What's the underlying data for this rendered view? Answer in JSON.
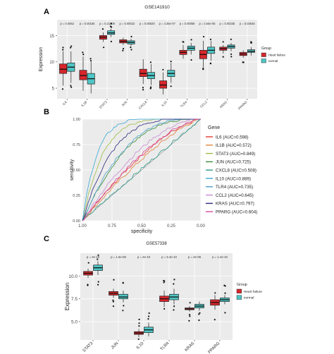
{
  "chart_data": [
    {
      "panel": "A",
      "type": "box",
      "title": "GSE141910",
      "ylabel": "Expression",
      "ylim": [
        3,
        18
      ],
      "yticks": [
        5,
        10,
        15
      ],
      "categories": [
        "IL6",
        "IL1B",
        "STAT3",
        "JUN",
        "CXCL8",
        "IL10",
        "TLR4",
        "CCL2",
        "KRAS",
        "PPARG"
      ],
      "pvalues": [
        "p = 0.0062",
        "p = 0.00155",
        "p = 0.21209",
        "p = 0.00022",
        "p = 0.00620",
        "p = 4.36e-07",
        "p = 0.00058",
        "p = 4.56e-05",
        "p = 0.00335",
        "p = 0.03546"
      ],
      "legend": {
        "title": "Group",
        "entries": [
          "Heart failure",
          "normal"
        ],
        "position": "right"
      },
      "series": [
        {
          "name": "Heart failure",
          "color": "#d7262b",
          "boxes": [
            {
              "q1": 7.8,
              "median": 8.6,
              "q3": 9.6,
              "wlo": 5.5,
              "whi": 12
            },
            {
              "q1": 6.6,
              "median": 7.4,
              "q3": 8.4,
              "wlo": 4.5,
              "whi": 11
            },
            {
              "q1": 14.3,
              "median": 14.7,
              "q3": 15.0,
              "wlo": 13.8,
              "whi": 15.6
            },
            {
              "q1": 13.6,
              "median": 13.9,
              "q3": 14.2,
              "wlo": 13.2,
              "whi": 14.6
            },
            {
              "q1": 7.2,
              "median": 7.8,
              "q3": 8.6,
              "wlo": 5.8,
              "whi": 10.5
            },
            {
              "q1": 5.0,
              "median": 5.6,
              "q3": 6.4,
              "wlo": 3.8,
              "whi": 8.0
            },
            {
              "q1": 11.4,
              "median": 11.8,
              "q3": 12.2,
              "wlo": 10.6,
              "whi": 13.2
            },
            {
              "q1": 10.6,
              "median": 11.4,
              "q3": 12.2,
              "wlo": 9.0,
              "whi": 14.0
            },
            {
              "q1": 12.2,
              "median": 12.5,
              "q3": 12.8,
              "wlo": 11.6,
              "whi": 13.2
            },
            {
              "q1": 11.2,
              "median": 11.5,
              "q3": 11.8,
              "wlo": 10.8,
              "whi": 12.2
            }
          ]
        },
        {
          "name": "normal",
          "color": "#4fc6c6",
          "boxes": [
            {
              "q1": 8.2,
              "median": 9.0,
              "q3": 9.8,
              "wlo": 6.0,
              "whi": 12.0
            },
            {
              "q1": 5.8,
              "median": 6.8,
              "q3": 7.8,
              "wlo": 4.0,
              "whi": 10.0
            },
            {
              "q1": 15.2,
              "median": 15.5,
              "q3": 15.9,
              "wlo": 14.7,
              "whi": 16.3
            },
            {
              "q1": 13.4,
              "median": 13.7,
              "q3": 14.0,
              "wlo": 13.0,
              "whi": 14.4
            },
            {
              "q1": 6.8,
              "median": 7.4,
              "q3": 8.0,
              "wlo": 5.6,
              "whi": 9.6
            },
            {
              "q1": 7.2,
              "median": 7.8,
              "q3": 8.4,
              "wlo": 6.0,
              "whi": 9.8
            },
            {
              "q1": 12.2,
              "median": 12.6,
              "q3": 13.0,
              "wlo": 11.4,
              "whi": 13.6
            },
            {
              "q1": 11.6,
              "median": 12.2,
              "q3": 12.8,
              "wlo": 10.2,
              "whi": 14.0
            },
            {
              "q1": 12.6,
              "median": 12.9,
              "q3": 13.2,
              "wlo": 12.0,
              "whi": 13.6
            },
            {
              "q1": 11.8,
              "median": 12.0,
              "q3": 12.3,
              "wlo": 11.2,
              "whi": 12.8
            }
          ]
        }
      ]
    },
    {
      "panel": "B",
      "type": "line",
      "xlabel": "specificity",
      "ylabel": "sensitivity",
      "xlim": [
        1.0,
        0.0
      ],
      "ylim": [
        0.0,
        1.0
      ],
      "xticks": [
        "1.00",
        "0.75",
        "0.50",
        "0.25",
        "0.00"
      ],
      "yticks": [
        "0.00",
        "0.25",
        "0.50",
        "0.75",
        "1.00"
      ],
      "legend": {
        "title": "Gene",
        "position": "right"
      },
      "series": [
        {
          "name": "IL6 (AUC=0.598)",
          "auc": 0.598,
          "color": "#e8372e"
        },
        {
          "name": "IL1B (AUC=0.572)",
          "auc": 0.572,
          "color": "#e0843a"
        },
        {
          "name": "STAT3 (AUC=0.849)",
          "auc": 0.849,
          "color": "#9cbc43"
        },
        {
          "name": "JUN (AUC=0.725)",
          "auc": 0.725,
          "color": "#3c8d3a"
        },
        {
          "name": "CXCL8 (AUC=0.508)",
          "auc": 0.508,
          "color": "#2d9a8a"
        },
        {
          "name": "IL10 (AUC=0.889)",
          "auc": 0.889,
          "color": "#38a8d6"
        },
        {
          "name": "TLR4 (AUC=0.735)",
          "auc": 0.735,
          "color": "#4aa0c8"
        },
        {
          "name": "CCL2 (AUC=0.645)",
          "auc": 0.645,
          "color": "#c78bd2"
        },
        {
          "name": "KRAS (AUC=0.797)",
          "auc": 0.797,
          "color": "#2c2a7d"
        },
        {
          "name": "PPARG (AUC=0.604)",
          "auc": 0.604,
          "color": "#d64aa0"
        }
      ]
    },
    {
      "panel": "C",
      "type": "box",
      "title": "GSE57338",
      "ylabel": "Expression",
      "ylim": [
        3,
        12.5
      ],
      "yticks": [
        "5.0",
        "7.5",
        "10.0"
      ],
      "categories": [
        "STAT3",
        "JUN",
        "IL10",
        "TLR4",
        "KRAS",
        "PPARG"
      ],
      "pvalues": [
        "p = 3e-19",
        "p = 1.5e-05",
        "p = 2e-10",
        "p = 5.3e-10",
        "p = 2e-06",
        "p = 1.2e-10"
      ],
      "legend": {
        "title": "Group",
        "entries": [
          "Heart failure",
          "normal"
        ],
        "position": "right"
      },
      "series": [
        {
          "name": "Heart failure",
          "color": "#d7262b",
          "boxes": [
            {
              "q1": 10.1,
              "median": 10.3,
              "q3": 10.5,
              "wlo": 9.8,
              "whi": 10.8
            },
            {
              "q1": 7.9,
              "median": 8.1,
              "q3": 8.3,
              "wlo": 7.6,
              "whi": 8.6
            },
            {
              "q1": 3.6,
              "median": 3.75,
              "q3": 3.9,
              "wlo": 3.3,
              "whi": 4.2
            },
            {
              "q1": 7.2,
              "median": 7.5,
              "q3": 7.8,
              "wlo": 6.6,
              "whi": 8.4
            },
            {
              "q1": 6.3,
              "median": 6.4,
              "q3": 6.5,
              "wlo": 6.1,
              "whi": 6.7
            },
            {
              "q1": 6.8,
              "median": 7.1,
              "q3": 7.4,
              "wlo": 6.3,
              "whi": 7.9
            }
          ]
        },
        {
          "name": "normal",
          "color": "#4fc6c6",
          "boxes": [
            {
              "q1": 10.6,
              "median": 10.9,
              "q3": 11.2,
              "wlo": 10.1,
              "whi": 11.6
            },
            {
              "q1": 7.5,
              "median": 7.7,
              "q3": 8.0,
              "wlo": 7.1,
              "whi": 8.4
            },
            {
              "q1": 3.8,
              "median": 4.1,
              "q3": 4.4,
              "wlo": 3.4,
              "whi": 4.9
            },
            {
              "q1": 7.4,
              "median": 7.7,
              "q3": 8.0,
              "wlo": 6.9,
              "whi": 8.6
            },
            {
              "q1": 6.5,
              "median": 6.7,
              "q3": 6.9,
              "wlo": 6.2,
              "whi": 7.2
            },
            {
              "q1": 7.2,
              "median": 7.4,
              "q3": 7.6,
              "wlo": 6.9,
              "whi": 7.9
            }
          ]
        }
      ]
    }
  ],
  "panel_labels": [
    "A",
    "B",
    "C"
  ]
}
